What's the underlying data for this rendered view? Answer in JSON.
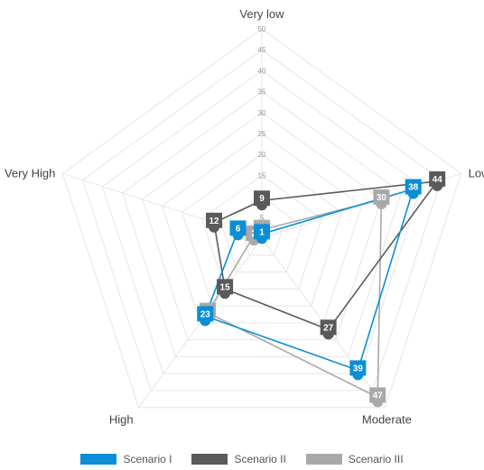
{
  "chart_data": {
    "type": "radar",
    "axes": [
      "Very low",
      "Low",
      "Moderate",
      "High",
      "Very High"
    ],
    "rlim": [
      0,
      50
    ],
    "ticks": [
      5,
      10,
      15,
      20,
      25,
      30,
      35,
      40,
      45,
      50
    ],
    "grid": true,
    "legend_position": "bottom",
    "series": [
      {
        "name": "Scenario I",
        "color": "#0a8fd6",
        "values": [
          1,
          38,
          39,
          23,
          6
        ]
      },
      {
        "name": "Scenario II",
        "color": "#5a5a5a",
        "values": [
          9,
          44,
          27,
          15,
          12
        ]
      },
      {
        "name": "Scenario III",
        "color": "#a9a9a9",
        "values": [
          2,
          30,
          47,
          22,
          2
        ]
      }
    ]
  }
}
